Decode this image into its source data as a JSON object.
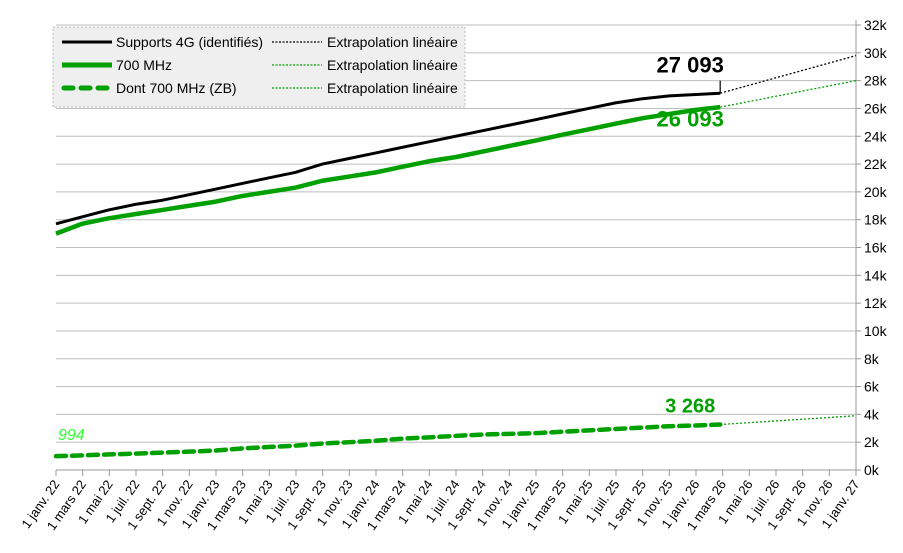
{
  "chart_data": {
    "type": "line",
    "title": "",
    "xlabel": "",
    "ylabel": "",
    "x_range": [
      "2022-01-01",
      "2027-01-01"
    ],
    "ylim": [
      0,
      32000
    ],
    "y_ticks": [
      0,
      2000,
      4000,
      6000,
      8000,
      10000,
      12000,
      14000,
      16000,
      18000,
      20000,
      22000,
      24000,
      26000,
      28000,
      30000,
      32000
    ],
    "y_tick_labels": [
      "0k",
      "2k",
      "4k",
      "6k",
      "8k",
      "10k",
      "12k",
      "14k",
      "16k",
      "18k",
      "20k",
      "22k",
      "24k",
      "26k",
      "28k",
      "30k",
      "32k"
    ],
    "y_axis_side": "right",
    "x_tick_labels": [
      "1 janv. 22",
      "1 mars 22",
      "1 mai 22",
      "1 juil. 22",
      "1 sept. 22",
      "1 nov. 22",
      "1 janv. 23",
      "1 mars 23",
      "1 mai 23",
      "1 juil. 23",
      "1 sept. 23",
      "1 nov. 23",
      "1 janv. 24",
      "1 mars 24",
      "1 mai 24",
      "1 juil. 24",
      "1 sept. 24",
      "1 nov. 24",
      "1 janv. 25",
      "1 mars 25",
      "1 mai 25",
      "1 juil. 25",
      "1 sept. 25",
      "1 nov. 25",
      "1 janv. 26",
      "1 mars 26",
      "1 mai 26",
      "1 juil. 26",
      "1 sept. 26",
      "1 nov. 26",
      "1 janv. 27"
    ],
    "grid": true,
    "legend_position": "top-left",
    "x": [
      "2022-01-01",
      "2022-03-01",
      "2022-05-01",
      "2022-07-01",
      "2022-09-01",
      "2022-11-01",
      "2023-01-01",
      "2023-03-01",
      "2023-05-01",
      "2023-07-01",
      "2023-09-01",
      "2023-11-01",
      "2024-01-01",
      "2024-03-01",
      "2024-05-01",
      "2024-07-01",
      "2024-09-01",
      "2024-11-01",
      "2025-01-01",
      "2025-03-01",
      "2025-05-01",
      "2025-07-01",
      "2025-09-01",
      "2025-11-01",
      "2026-01-01",
      "2026-02-25"
    ],
    "series": [
      {
        "name": "Supports 4G (identifiés)",
        "color": "#000000",
        "style": "solid",
        "values": [
          17700,
          18200,
          18700,
          19100,
          19400,
          19800,
          20200,
          20600,
          21000,
          21400,
          22000,
          22400,
          22800,
          23200,
          23600,
          24000,
          24400,
          24800,
          25200,
          25600,
          26000,
          26400,
          26700,
          26900,
          27000,
          27093
        ]
      },
      {
        "name": "700 MHz",
        "color": "#00a000",
        "style": "solid",
        "values": [
          17000,
          17700,
          18100,
          18400,
          18700,
          19000,
          19300,
          19700,
          20000,
          20300,
          20800,
          21100,
          21400,
          21800,
          22200,
          22500,
          22900,
          23300,
          23700,
          24100,
          24500,
          24900,
          25300,
          25600,
          25900,
          26093
        ]
      },
      {
        "name": "Dont 700 MHz (ZB)",
        "color": "#00a000",
        "style": "dashed",
        "values": [
          994,
          1050,
          1120,
          1180,
          1250,
          1320,
          1400,
          1550,
          1650,
          1750,
          1900,
          2000,
          2100,
          2250,
          2350,
          2450,
          2550,
          2600,
          2650,
          2750,
          2850,
          2950,
          3050,
          3150,
          3200,
          3268
        ]
      }
    ],
    "extrapolations": [
      {
        "name": "Extrapolation linéaire",
        "color": "#000000",
        "from": [
          "2026-02-25",
          27093
        ],
        "to": [
          "2027-01-01",
          29800
        ]
      },
      {
        "name": "Extrapolation linéaire",
        "color": "#00a000",
        "from": [
          "2026-02-25",
          26093
        ],
        "to": [
          "2027-01-01",
          28000
        ]
      },
      {
        "name": "Extrapolation linéaire",
        "color": "#00a000",
        "from": [
          "2026-02-25",
          3268
        ],
        "to": [
          "2027-01-01",
          3900
        ]
      }
    ],
    "annotations": [
      {
        "text": "27 093",
        "color": "#000000",
        "at": [
          "2026-02-25",
          27093
        ]
      },
      {
        "text": "26 093",
        "color": "#00a000",
        "at": [
          "2026-02-25",
          26093
        ]
      },
      {
        "text": "3 268",
        "color": "#00a000",
        "at": [
          "2026-02-25",
          3268
        ]
      },
      {
        "text": "994",
        "color": "#33ff33",
        "at": [
          "2022-01-01",
          994
        ]
      }
    ]
  }
}
